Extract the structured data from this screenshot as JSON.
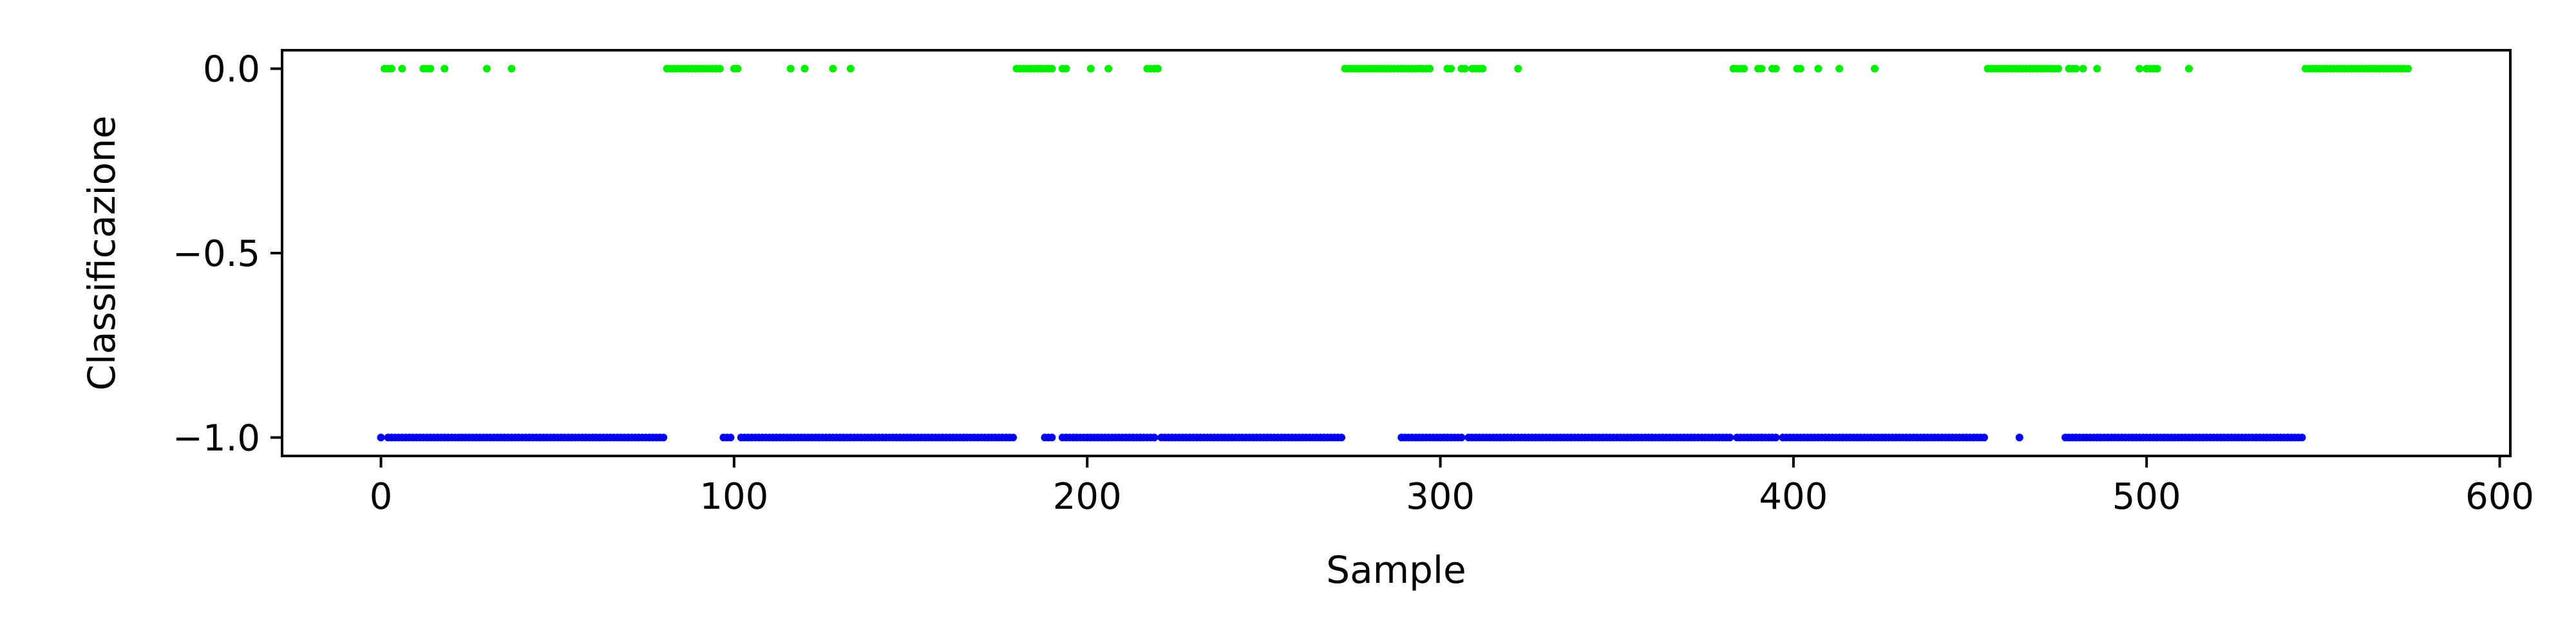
{
  "chart_data": {
    "type": "scatter",
    "title": "",
    "xlabel": "Sample",
    "ylabel": "Classificazione",
    "xlim": [
      -28,
      603
    ],
    "ylim": [
      -1.05,
      0.05
    ],
    "xticks": [
      0,
      100,
      200,
      300,
      400,
      500,
      600
    ],
    "yticks": [
      0.0,
      -0.5,
      -1.0
    ],
    "xtick_labels": [
      "0",
      "100",
      "200",
      "300",
      "400",
      "500",
      "600"
    ],
    "ytick_labels": [
      "0.0",
      "−0.5",
      "−1.0"
    ],
    "grid": false,
    "legend": "none",
    "series": [
      {
        "color": "#00ee00",
        "y": 0.0,
        "x": [
          1,
          2,
          3,
          6,
          12,
          13,
          14,
          18,
          30,
          37,
          81,
          82,
          83,
          84,
          85,
          86,
          87,
          88,
          89,
          90,
          91,
          92,
          93,
          94,
          95,
          96,
          100,
          101,
          116,
          120,
          128,
          133,
          180,
          181,
          182,
          183,
          184,
          185,
          186,
          187,
          188,
          189,
          190,
          193,
          194,
          201,
          206,
          217,
          218,
          219,
          220,
          273,
          274,
          275,
          276,
          277,
          278,
          279,
          280,
          281,
          282,
          283,
          284,
          285,
          286,
          287,
          288,
          289,
          290,
          291,
          292,
          293,
          294,
          295,
          296,
          297,
          302,
          303,
          306,
          307,
          309,
          310,
          311,
          312,
          322,
          383,
          384,
          385,
          386,
          390,
          391,
          394,
          395,
          401,
          402,
          407,
          413,
          423,
          455,
          456,
          457,
          458,
          459,
          460,
          461,
          462,
          463,
          464,
          465,
          466,
          467,
          468,
          469,
          470,
          471,
          472,
          473,
          474,
          475,
          478,
          479,
          480,
          482,
          486,
          498,
          500,
          501,
          502,
          503,
          512,
          545,
          546,
          547,
          548,
          549,
          550,
          551,
          552,
          553,
          554,
          555,
          556,
          557,
          558,
          559,
          560,
          561,
          562,
          563,
          564,
          565,
          566,
          567,
          568,
          569,
          570,
          571,
          572,
          573,
          574
        ]
      },
      {
        "color": "#0000ee",
        "y": -1.0,
        "x": [
          0,
          2,
          3,
          4,
          5,
          6,
          7,
          8,
          9,
          10,
          11,
          12,
          13,
          14,
          15,
          16,
          17,
          18,
          19,
          20,
          21,
          22,
          23,
          24,
          25,
          26,
          27,
          28,
          29,
          30,
          31,
          32,
          33,
          34,
          35,
          36,
          37,
          38,
          39,
          40,
          41,
          42,
          43,
          44,
          45,
          46,
          47,
          48,
          49,
          50,
          51,
          52,
          53,
          54,
          55,
          56,
          57,
          58,
          59,
          60,
          61,
          62,
          63,
          64,
          65,
          66,
          67,
          68,
          69,
          70,
          71,
          72,
          73,
          74,
          75,
          76,
          77,
          78,
          79,
          80,
          97,
          98,
          99,
          102,
          103,
          104,
          105,
          106,
          107,
          108,
          109,
          110,
          111,
          112,
          113,
          114,
          115,
          116,
          117,
          118,
          119,
          120,
          121,
          122,
          123,
          124,
          125,
          126,
          127,
          128,
          129,
          130,
          131,
          132,
          133,
          134,
          135,
          136,
          137,
          138,
          139,
          140,
          141,
          142,
          143,
          144,
          145,
          146,
          147,
          148,
          149,
          150,
          151,
          152,
          153,
          154,
          155,
          156,
          157,
          158,
          159,
          160,
          161,
          162,
          163,
          164,
          165,
          166,
          167,
          168,
          169,
          170,
          171,
          172,
          173,
          174,
          175,
          176,
          177,
          178,
          179,
          188,
          189,
          190,
          193,
          194,
          195,
          196,
          197,
          198,
          199,
          200,
          201,
          202,
          203,
          204,
          205,
          206,
          207,
          208,
          209,
          210,
          211,
          212,
          213,
          214,
          215,
          216,
          217,
          218,
          219,
          221,
          222,
          223,
          224,
          225,
          226,
          227,
          228,
          229,
          230,
          231,
          232,
          233,
          234,
          235,
          236,
          237,
          238,
          239,
          240,
          241,
          242,
          243,
          244,
          245,
          246,
          247,
          248,
          249,
          250,
          251,
          252,
          253,
          254,
          255,
          256,
          257,
          258,
          259,
          260,
          261,
          262,
          263,
          264,
          265,
          266,
          267,
          268,
          269,
          270,
          271,
          272,
          289,
          290,
          291,
          292,
          293,
          294,
          295,
          296,
          297,
          298,
          299,
          300,
          301,
          302,
          303,
          304,
          305,
          306,
          308,
          309,
          310,
          311,
          312,
          313,
          314,
          315,
          316,
          317,
          318,
          319,
          320,
          321,
          322,
          323,
          324,
          325,
          326,
          327,
          328,
          329,
          330,
          331,
          332,
          333,
          334,
          335,
          336,
          337,
          338,
          339,
          340,
          341,
          342,
          343,
          344,
          345,
          346,
          347,
          348,
          349,
          350,
          351,
          352,
          353,
          354,
          355,
          356,
          357,
          358,
          359,
          360,
          361,
          362,
          363,
          364,
          365,
          366,
          367,
          368,
          369,
          370,
          371,
          372,
          373,
          374,
          375,
          376,
          377,
          378,
          379,
          380,
          381,
          382,
          384,
          385,
          386,
          387,
          388,
          389,
          390,
          391,
          392,
          393,
          394,
          395,
          397,
          398,
          399,
          400,
          401,
          402,
          403,
          404,
          405,
          406,
          407,
          408,
          409,
          410,
          411,
          412,
          413,
          414,
          415,
          416,
          417,
          418,
          419,
          420,
          421,
          422,
          423,
          424,
          425,
          426,
          427,
          428,
          429,
          430,
          431,
          432,
          433,
          434,
          435,
          436,
          437,
          438,
          439,
          440,
          441,
          442,
          443,
          444,
          445,
          446,
          447,
          448,
          449,
          450,
          451,
          452,
          453,
          454,
          464,
          477,
          478,
          479,
          480,
          481,
          482,
          483,
          484,
          485,
          486,
          487,
          488,
          489,
          490,
          491,
          492,
          493,
          494,
          495,
          496,
          497,
          498,
          499,
          500,
          501,
          502,
          503,
          504,
          505,
          506,
          507,
          508,
          509,
          510,
          511,
          512,
          513,
          514,
          515,
          516,
          517,
          518,
          519,
          520,
          521,
          522,
          523,
          524,
          525,
          526,
          527,
          528,
          529,
          530,
          531,
          532,
          533,
          534,
          535,
          536,
          537,
          538,
          539,
          540,
          541,
          542,
          543,
          544
        ]
      }
    ]
  }
}
